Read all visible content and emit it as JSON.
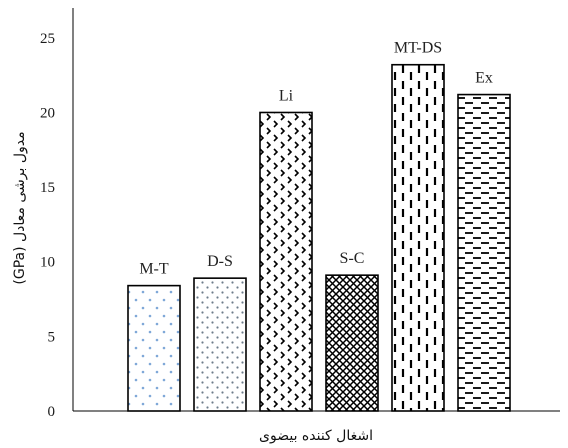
{
  "chart_data": {
    "type": "bar",
    "categories": [
      "M-T",
      "D-S",
      "Li",
      "S-C",
      "MT-DS",
      "Ex"
    ],
    "values": [
      8.4,
      8.9,
      20.0,
      9.1,
      23.2,
      21.2
    ],
    "title": "",
    "xlabel": "اشغال کننده بیضوی",
    "ylabel": "مدول برشی معادل (GPa)",
    "ylim": [
      0,
      27
    ],
    "yticks": [
      0,
      5,
      10,
      15,
      20,
      25
    ],
    "grid": false,
    "data_labels": [
      "M-T",
      "D-S",
      "Li",
      "S-C",
      "MT-DS",
      "Ex"
    ],
    "bar_patterns": [
      "light-blue-dots",
      "grey-dots",
      "chevrons",
      "crosshatch-dense",
      "vertical-dashes",
      "horizontal-dashes"
    ],
    "colors": {
      "bar_outline": "#000000",
      "axis": "#000000",
      "label_text": "#222222"
    }
  }
}
